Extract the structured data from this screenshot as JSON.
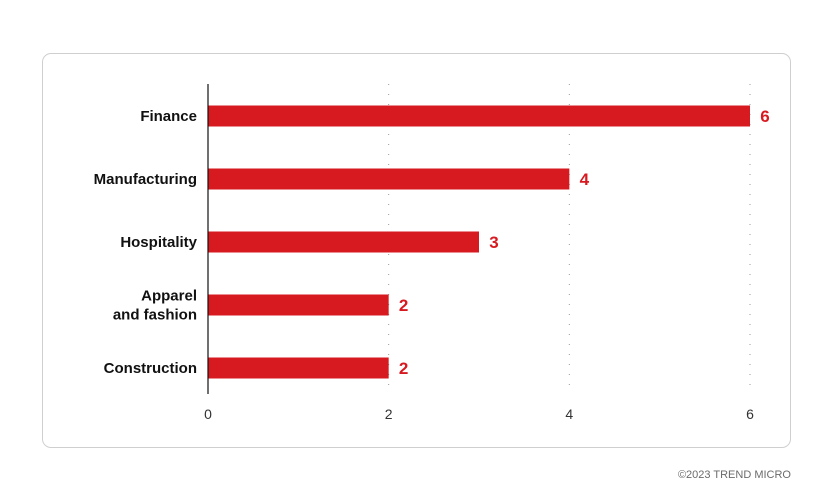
{
  "chart_data": {
    "type": "bar",
    "orientation": "horizontal",
    "categories": [
      "Finance",
      "Manufacturing",
      "Hospitality",
      "Apparel\nand fashion",
      "Construction"
    ],
    "values": [
      6,
      4,
      3,
      2,
      2
    ],
    "xlim": [
      0,
      6
    ],
    "xticks": [
      0,
      2,
      4,
      6
    ],
    "grid": "dotted vertical",
    "bar_color": "#d71920",
    "label_color": "#d71920"
  },
  "footer": {
    "copyright": "©2023 TREND MICRO"
  }
}
